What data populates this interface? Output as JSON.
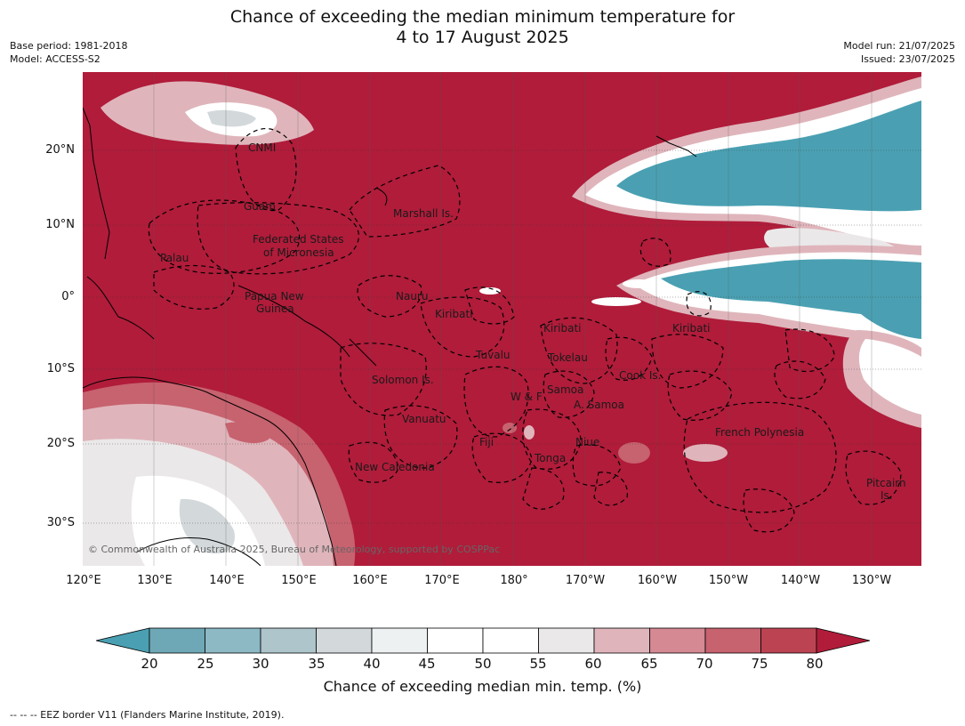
{
  "header": {
    "title_line1": "Chance of exceeding the median minimum temperature for",
    "title_line2": "4 to 17 August 2025",
    "base_period": "Base period: 1981-2018",
    "model": "Model: ACCESS-S2",
    "model_run": "Model run: 21/07/2025",
    "issued": "Issued: 23/07/2025"
  },
  "map": {
    "latitude_ticks": [
      "20°N",
      "10°N",
      "0°",
      "10°S",
      "20°S",
      "30°S"
    ],
    "longitude_ticks": [
      "120°E",
      "130°E",
      "140°E",
      "150°E",
      "160°E",
      "170°E",
      "180°",
      "170°W",
      "160°W",
      "150°W",
      "140°W",
      "130°W"
    ],
    "region_labels": [
      "CNMI",
      "Guam",
      "Marshall Is.",
      "Federated States",
      "of Micronesia",
      "Palau",
      "Papua New",
      "Guinea",
      "Nauru",
      "Kiribati",
      "Kiribati",
      "Kiribati",
      "Tuvalu",
      "Tokelau",
      "Solomon Is.",
      "Cook Is.",
      "Samoa",
      "W & F",
      "A. Samoa",
      "Vanuatu",
      "Fiji",
      "Niue",
      "Tonga",
      "French Polynesia",
      "New Caledonia",
      "Pitcairn",
      "Is."
    ],
    "copyright": "© Commonwealth of Australia 2025, Bureau of Meteorology, supported by COSPPac"
  },
  "legend": {
    "ticks": [
      "20",
      "25",
      "30",
      "35",
      "40",
      "45",
      "50",
      "55",
      "60",
      "65",
      "70",
      "75",
      "80"
    ],
    "colors": [
      "#4aa0b2",
      "#6ea8b6",
      "#8cb9c4",
      "#adc5cb",
      "#d3d9db",
      "#edf1f2",
      "#ffffff",
      "#ffffff",
      "#ebe8e9",
      "#dfb5bb",
      "#d48993",
      "#c7626f",
      "#bc4352",
      "#b01c3a"
    ],
    "label": "Chance of exceeding median min. temp. (%)"
  },
  "footnote": "--  --  -- EEZ border V11 (Flanders Marine Institute, 2019)."
}
